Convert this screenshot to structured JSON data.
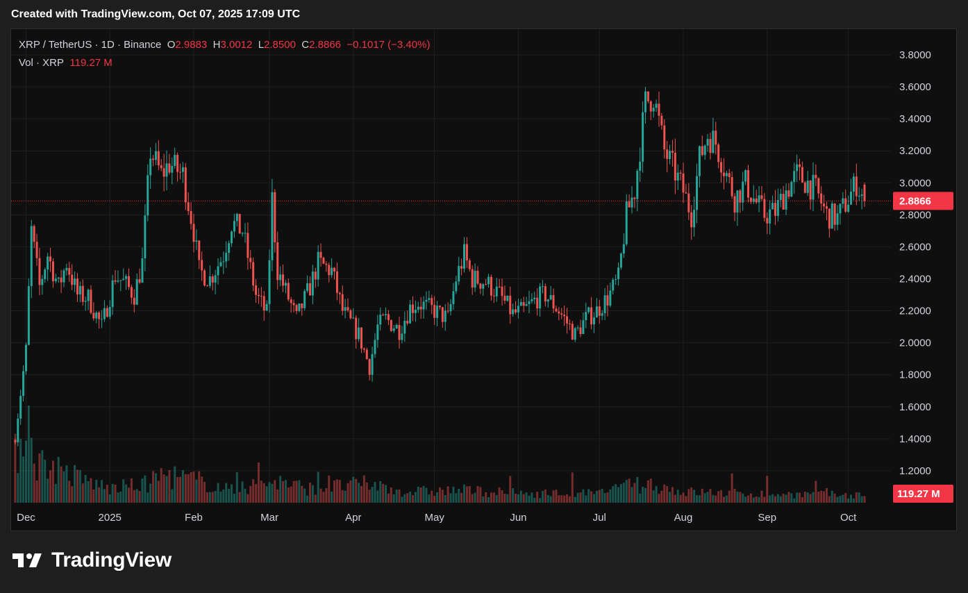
{
  "header": {
    "caption": "Created with TradingView.com, Oct 07, 2025 17:09 UTC"
  },
  "legend": {
    "symbol": "XRP / TetherUS · 1D · Binance",
    "o_label": "O",
    "o_value": "2.9883",
    "h_label": "H",
    "h_value": "3.0012",
    "l_label": "L",
    "l_value": "2.8500",
    "c_label": "C",
    "c_value": "2.8866",
    "change": "−0.1017 (−3.40%)",
    "vol_label": "Vol · XRP",
    "vol_value": "119.27 M"
  },
  "footer": {
    "brand": "TradingView"
  },
  "colors": {
    "up": "#26a69a",
    "down": "#ef5350",
    "background": "#0f0f0f",
    "grid": "#1f1f1f",
    "tag": "#f23645"
  },
  "chart_data": {
    "type": "candlestick",
    "title": "XRP / TetherUS · 1D · Binance",
    "y_ticks": [
      "3.8000",
      "3.6000",
      "3.4000",
      "3.2000",
      "3.0000",
      "2.8000",
      "2.6000",
      "2.4000",
      "2.2000",
      "2.0000",
      "1.8000",
      "1.6000",
      "1.4000",
      "1.2000"
    ],
    "x_ticks": [
      "Dec",
      "2025",
      "Feb",
      "Mar",
      "Apr",
      "May",
      "Jun",
      "Jul",
      "Aug",
      "Sep",
      "Oct"
    ],
    "ylim": [
      1.05,
      3.85
    ],
    "last_price": 2.8866,
    "last_price_label": "2.8866",
    "last_volume_label": "119.27 M",
    "grid": true,
    "anchors": [
      [
        "2024-11-27",
        1.42
      ],
      [
        "2024-12-01",
        1.95
      ],
      [
        "2024-12-03",
        2.7
      ],
      [
        "2024-12-06",
        2.35
      ],
      [
        "2024-12-09",
        2.55
      ],
      [
        "2024-12-13",
        2.35
      ],
      [
        "2024-12-16",
        2.5
      ],
      [
        "2024-12-20",
        2.3
      ],
      [
        "2024-12-24",
        2.28
      ],
      [
        "2024-12-29",
        2.1
      ],
      [
        "2025-01-03",
        2.42
      ],
      [
        "2025-01-06",
        2.38
      ],
      [
        "2025-01-10",
        2.3
      ],
      [
        "2025-01-13",
        2.5
      ],
      [
        "2025-01-16",
        3.2
      ],
      [
        "2025-01-20",
        3.05
      ],
      [
        "2025-01-23",
        3.12
      ],
      [
        "2025-01-28",
        3.05
      ],
      [
        "2025-02-01",
        2.7
      ],
      [
        "2025-02-03",
        2.45
      ],
      [
        "2025-02-07",
        2.4
      ],
      [
        "2025-02-12",
        2.55
      ],
      [
        "2025-02-15",
        2.75
      ],
      [
        "2025-02-19",
        2.7
      ],
      [
        "2025-02-24",
        2.3
      ],
      [
        "2025-02-28",
        2.18
      ],
      [
        "2025-03-02",
        2.9
      ],
      [
        "2025-03-04",
        2.45
      ],
      [
        "2025-03-08",
        2.28
      ],
      [
        "2025-03-11",
        2.15
      ],
      [
        "2025-03-16",
        2.35
      ],
      [
        "2025-03-19",
        2.5
      ],
      [
        "2025-03-24",
        2.45
      ],
      [
        "2025-03-28",
        2.2
      ],
      [
        "2025-04-03",
        2.05
      ],
      [
        "2025-04-07",
        1.85
      ],
      [
        "2025-04-10",
        2.1
      ],
      [
        "2025-04-13",
        2.15
      ],
      [
        "2025-04-18",
        2.08
      ],
      [
        "2025-04-22",
        2.22
      ],
      [
        "2025-04-25",
        2.25
      ],
      [
        "2025-05-01",
        2.2
      ],
      [
        "2025-05-06",
        2.15
      ],
      [
        "2025-05-09",
        2.4
      ],
      [
        "2025-05-12",
        2.55
      ],
      [
        "2025-05-15",
        2.4
      ],
      [
        "2025-05-20",
        2.38
      ],
      [
        "2025-05-25",
        2.3
      ],
      [
        "2025-05-30",
        2.18
      ],
      [
        "2025-06-03",
        2.2
      ],
      [
        "2025-06-08",
        2.28
      ],
      [
        "2025-06-11",
        2.3
      ],
      [
        "2025-06-16",
        2.2
      ],
      [
        "2025-06-22",
        2.05
      ],
      [
        "2025-06-26",
        2.15
      ],
      [
        "2025-06-30",
        2.2
      ],
      [
        "2025-07-04",
        2.28
      ],
      [
        "2025-07-08",
        2.4
      ],
      [
        "2025-07-11",
        2.8
      ],
      [
        "2025-07-14",
        2.95
      ],
      [
        "2025-07-18",
        3.5
      ],
      [
        "2025-07-21",
        3.55
      ],
      [
        "2025-07-25",
        3.2
      ],
      [
        "2025-07-28",
        3.1
      ],
      [
        "2025-08-01",
        2.95
      ],
      [
        "2025-08-04",
        2.8
      ],
      [
        "2025-08-07",
        3.15
      ],
      [
        "2025-08-10",
        3.3
      ],
      [
        "2025-08-13",
        3.25
      ],
      [
        "2025-08-16",
        3.1
      ],
      [
        "2025-08-20",
        2.9
      ],
      [
        "2025-08-24",
        3.0
      ],
      [
        "2025-08-27",
        2.9
      ],
      [
        "2025-08-31",
        2.8
      ],
      [
        "2025-09-04",
        2.82
      ],
      [
        "2025-09-08",
        2.95
      ],
      [
        "2025-09-12",
        3.05
      ],
      [
        "2025-09-16",
        3.0
      ],
      [
        "2025-09-19",
        2.95
      ],
      [
        "2025-09-23",
        2.8
      ],
      [
        "2025-09-27",
        2.78
      ],
      [
        "2025-10-01",
        2.9
      ],
      [
        "2025-10-04",
        3.0
      ],
      [
        "2025-10-07",
        2.8866
      ]
    ],
    "volume_anchors": [
      [
        "2024-11-27",
        140
      ],
      [
        "2024-12-02",
        300
      ],
      [
        "2024-12-05",
        130
      ],
      [
        "2024-12-10",
        120
      ],
      [
        "2024-12-20",
        80
      ],
      [
        "2025-01-01",
        45
      ],
      [
        "2025-01-15",
        60
      ],
      [
        "2025-01-20",
        90
      ],
      [
        "2025-02-03",
        70
      ],
      [
        "2025-02-15",
        40
      ],
      [
        "2025-03-03",
        70
      ],
      [
        "2025-03-15",
        45
      ],
      [
        "2025-04-07",
        60
      ],
      [
        "2025-04-20",
        35
      ],
      [
        "2025-05-12",
        40
      ],
      [
        "2025-06-01",
        30
      ],
      [
        "2025-07-01",
        30
      ],
      [
        "2025-07-14",
        55
      ],
      [
        "2025-07-20",
        60
      ],
      [
        "2025-08-01",
        35
      ],
      [
        "2025-09-01",
        28
      ],
      [
        "2025-10-07",
        25
      ]
    ]
  }
}
